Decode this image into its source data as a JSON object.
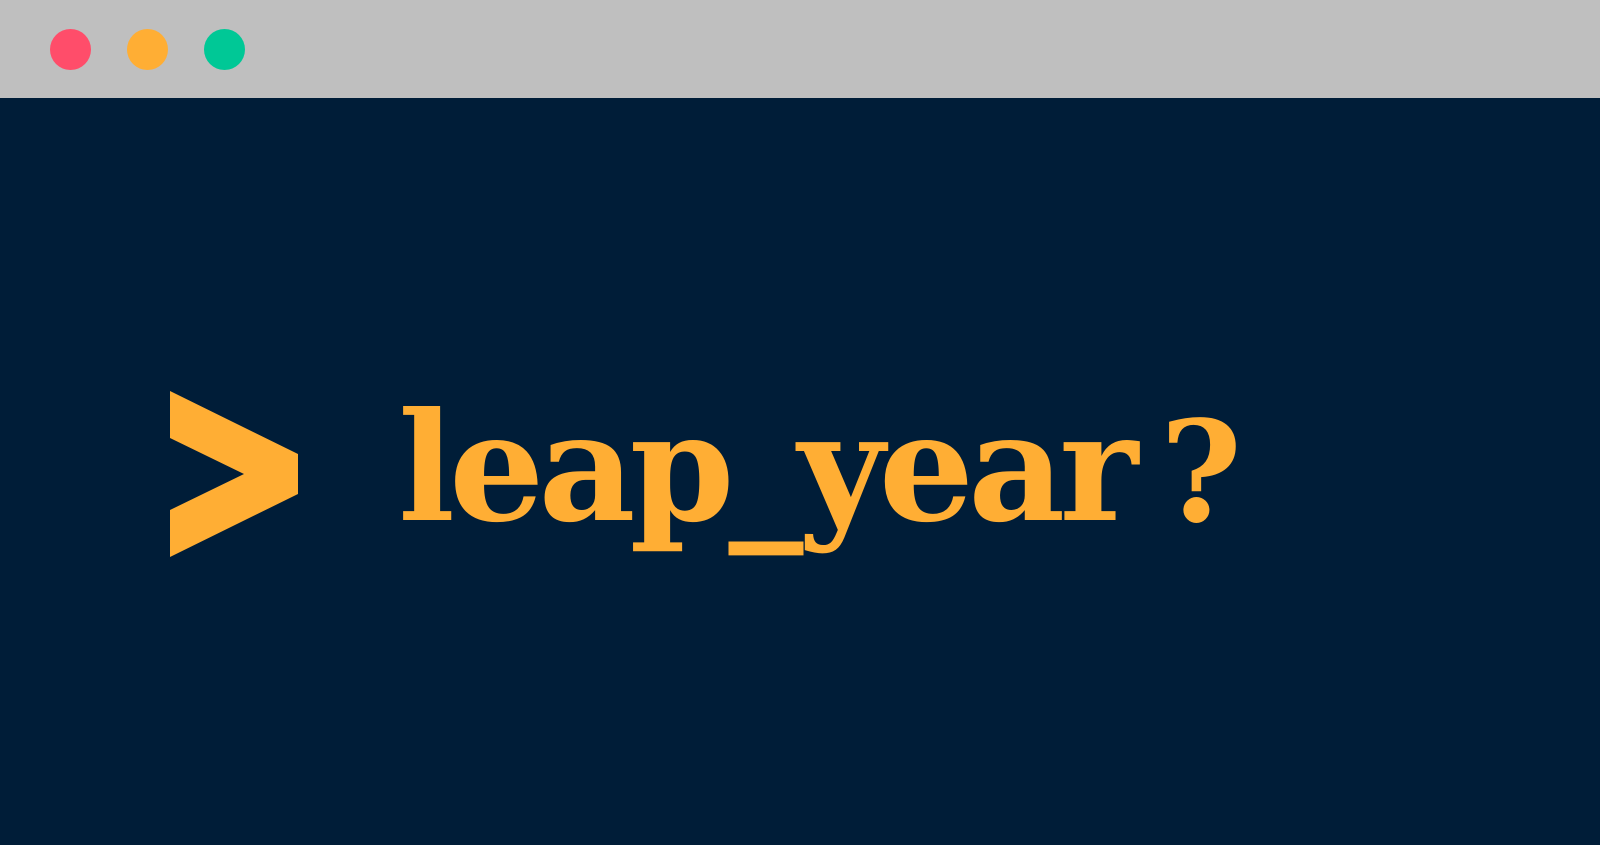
{
  "window": {
    "background": "#001d38",
    "titlebar_color": "#bfbfbf",
    "controls": [
      {
        "name": "close",
        "color": "#ff4d6a"
      },
      {
        "name": "minimize",
        "color": "#ffae34"
      },
      {
        "name": "maximize",
        "color": "#00c896"
      }
    ]
  },
  "terminal": {
    "prompt_icon": "chevron-right-icon",
    "command": "leap_year",
    "suffix": "?",
    "text_color": "#ffae34"
  }
}
